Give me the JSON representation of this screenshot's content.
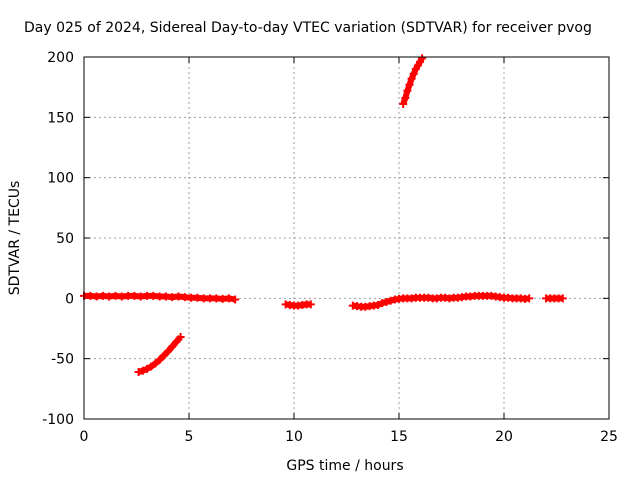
{
  "chart_data": {
    "type": "scatter",
    "title": "Day 025 of 2024, Sidereal Day-to-day VTEC variation (SDTVAR) for receiver pvog",
    "xlabel": "GPS time / hours",
    "ylabel": "SDTVAR / TECUs",
    "xlim": [
      0,
      25
    ],
    "ylim": [
      -100,
      200
    ],
    "xticks": [
      0,
      5,
      10,
      15,
      20,
      25
    ],
    "yticks": [
      -100,
      -50,
      0,
      50,
      100,
      150,
      200
    ],
    "xtick_labels": [
      "0",
      "5",
      "10",
      "15",
      "20",
      "25"
    ],
    "ytick_labels": [
      "-100",
      "-50",
      "0",
      "50",
      "100",
      "150",
      "200"
    ],
    "grid": true,
    "marker_color": "#ff0000",
    "marker": "plus",
    "series": [
      {
        "x": [
          0.0,
          0.3,
          0.6,
          0.9,
          1.2,
          1.5,
          1.8,
          2.1,
          2.4,
          2.7,
          3.0,
          3.3,
          3.6,
          3.9,
          4.2,
          4.5,
          4.8,
          5.1,
          5.4,
          5.7,
          6.0,
          6.3,
          6.6,
          6.9,
          7.2
        ],
        "y": [
          2,
          2,
          1.5,
          2,
          1.5,
          2,
          1.5,
          2,
          2,
          1.5,
          2,
          2,
          1.5,
          1.5,
          1,
          1.5,
          1,
          0.5,
          0.5,
          0,
          0,
          0,
          -0.5,
          0,
          -1
        ]
      },
      {
        "x": [
          2.6,
          2.8,
          3.0,
          3.2,
          3.4,
          3.6,
          3.8,
          4.0,
          4.2,
          4.4,
          4.6
        ],
        "y": [
          -61,
          -60,
          -58.5,
          -56.5,
          -54,
          -51,
          -47.5,
          -44,
          -40,
          -36,
          -32
        ]
      },
      {
        "x": [
          9.6,
          9.8,
          10.0,
          10.2,
          10.4,
          10.6,
          10.8
        ],
        "y": [
          -5,
          -5.5,
          -6,
          -6,
          -5.5,
          -5,
          -5
        ]
      },
      {
        "x": [
          12.8,
          13.0,
          13.2,
          13.4,
          13.6,
          13.8,
          14.0,
          14.2,
          14.4,
          14.6,
          14.8,
          15.0,
          15.2,
          15.4,
          15.6,
          15.8,
          16.0,
          16.2,
          16.4,
          16.6,
          16.8,
          17.0,
          17.2,
          17.4,
          17.6,
          17.8,
          18.0,
          18.2,
          18.4,
          18.6,
          18.8,
          19.0,
          19.2,
          19.4,
          19.6,
          19.8,
          20.0,
          20.2,
          20.4,
          20.6,
          20.8,
          21.0,
          21.2
        ],
        "y": [
          -6,
          -6.5,
          -7,
          -7,
          -6.5,
          -6,
          -5.5,
          -4,
          -3,
          -2,
          -1,
          -0.5,
          0,
          0,
          0,
          0.5,
          0.5,
          0.5,
          0.5,
          0,
          0,
          0.5,
          0.5,
          0,
          0.5,
          0.5,
          1,
          1.5,
          1.5,
          2,
          2,
          2,
          2,
          2,
          1.5,
          1,
          0.5,
          0.5,
          0,
          0,
          0,
          -0.5,
          0
        ]
      },
      {
        "x": [
          22.0,
          22.2,
          22.4,
          22.6,
          22.8
        ],
        "y": [
          0,
          0,
          0,
          0,
          0
        ]
      },
      {
        "x": [
          15.2,
          15.3,
          15.4,
          15.5,
          15.6,
          15.7,
          15.8,
          15.9,
          16.0,
          16.1
        ],
        "y": [
          161,
          166,
          172,
          177,
          182,
          186,
          190,
          193,
          196,
          199
        ]
      }
    ]
  }
}
